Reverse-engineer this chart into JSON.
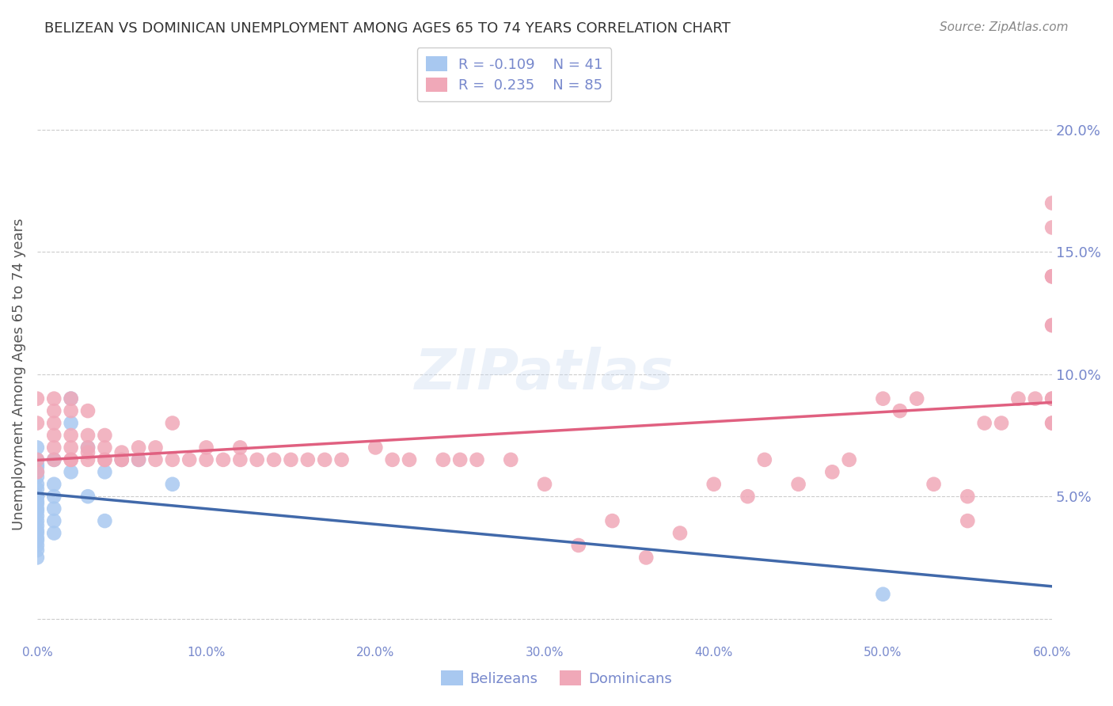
{
  "title": "BELIZEAN VS DOMINICAN UNEMPLOYMENT AMONG AGES 65 TO 74 YEARS CORRELATION CHART",
  "source": "Source: ZipAtlas.com",
  "xlabel": "",
  "ylabel": "Unemployment Among Ages 65 to 74 years",
  "xlim": [
    0.0,
    0.6
  ],
  "ylim": [
    -0.01,
    0.21
  ],
  "xticks": [
    0.0,
    0.1,
    0.2,
    0.3,
    0.4,
    0.5,
    0.6
  ],
  "yticks": [
    0.0,
    0.05,
    0.1,
    0.15,
    0.2
  ],
  "xticklabels": [
    "0.0%",
    "10.0%",
    "20.0%",
    "30.0%",
    "40.0%",
    "50.0%",
    "60.0%"
  ],
  "yticklabels_right": [
    "",
    "5.0%",
    "10.0%",
    "15.0%",
    "20.0%"
  ],
  "legend_r_blue": "-0.109",
  "legend_n_blue": "41",
  "legend_r_pink": "0.235",
  "legend_n_pink": "85",
  "blue_color": "#a8c8f0",
  "pink_color": "#f0a8b8",
  "blue_line_color": "#4169aa",
  "pink_line_color": "#e06080",
  "blue_fill_color": "#c8dcf8",
  "watermark": "ZIPatlas",
  "title_color": "#333333",
  "axis_color": "#7788cc",
  "grid_color": "#cccccc",
  "belizean_x": [
    0.0,
    0.0,
    0.0,
    0.0,
    0.0,
    0.0,
    0.0,
    0.0,
    0.0,
    0.0,
    0.0,
    0.0,
    0.0,
    0.0,
    0.0,
    0.0,
    0.0,
    0.0,
    0.0,
    0.0,
    0.0,
    0.0,
    0.0,
    0.0,
    0.01,
    0.01,
    0.01,
    0.01,
    0.01,
    0.01,
    0.02,
    0.02,
    0.02,
    0.03,
    0.03,
    0.04,
    0.04,
    0.05,
    0.06,
    0.08,
    0.5
  ],
  "belizean_y": [
    0.07,
    0.065,
    0.063,
    0.062,
    0.06,
    0.058,
    0.055,
    0.053,
    0.05,
    0.05,
    0.048,
    0.047,
    0.045,
    0.044,
    0.042,
    0.04,
    0.038,
    0.036,
    0.035,
    0.033,
    0.032,
    0.03,
    0.028,
    0.025,
    0.065,
    0.055,
    0.05,
    0.045,
    0.04,
    0.035,
    0.09,
    0.08,
    0.06,
    0.07,
    0.05,
    0.06,
    0.04,
    0.065,
    0.065,
    0.055,
    0.01
  ],
  "dominican_x": [
    0.0,
    0.0,
    0.0,
    0.0,
    0.01,
    0.01,
    0.01,
    0.01,
    0.01,
    0.01,
    0.02,
    0.02,
    0.02,
    0.02,
    0.02,
    0.02,
    0.03,
    0.03,
    0.03,
    0.03,
    0.03,
    0.04,
    0.04,
    0.04,
    0.04,
    0.05,
    0.05,
    0.05,
    0.06,
    0.06,
    0.07,
    0.07,
    0.08,
    0.08,
    0.09,
    0.1,
    0.1,
    0.11,
    0.12,
    0.12,
    0.13,
    0.14,
    0.15,
    0.16,
    0.17,
    0.18,
    0.2,
    0.21,
    0.22,
    0.24,
    0.25,
    0.26,
    0.28,
    0.3,
    0.32,
    0.34,
    0.36,
    0.38,
    0.4,
    0.42,
    0.43,
    0.45,
    0.47,
    0.48,
    0.5,
    0.51,
    0.52,
    0.53,
    0.55,
    0.55,
    0.56,
    0.57,
    0.58,
    0.59,
    0.6,
    0.6,
    0.6,
    0.6,
    0.6,
    0.6,
    0.6,
    0.6,
    0.6,
    0.6,
    0.6
  ],
  "dominican_y": [
    0.065,
    0.06,
    0.08,
    0.09,
    0.065,
    0.07,
    0.075,
    0.08,
    0.085,
    0.09,
    0.065,
    0.065,
    0.07,
    0.075,
    0.085,
    0.09,
    0.065,
    0.068,
    0.07,
    0.075,
    0.085,
    0.065,
    0.065,
    0.07,
    0.075,
    0.065,
    0.065,
    0.068,
    0.065,
    0.07,
    0.065,
    0.07,
    0.065,
    0.08,
    0.065,
    0.065,
    0.07,
    0.065,
    0.065,
    0.07,
    0.065,
    0.065,
    0.065,
    0.065,
    0.065,
    0.065,
    0.07,
    0.065,
    0.065,
    0.065,
    0.065,
    0.065,
    0.065,
    0.055,
    0.03,
    0.04,
    0.025,
    0.035,
    0.055,
    0.05,
    0.065,
    0.055,
    0.06,
    0.065,
    0.09,
    0.085,
    0.09,
    0.055,
    0.05,
    0.04,
    0.08,
    0.08,
    0.09,
    0.09,
    0.14,
    0.08,
    0.09,
    0.14,
    0.17,
    0.16,
    0.12,
    0.12,
    0.09,
    0.08,
    0.14
  ]
}
